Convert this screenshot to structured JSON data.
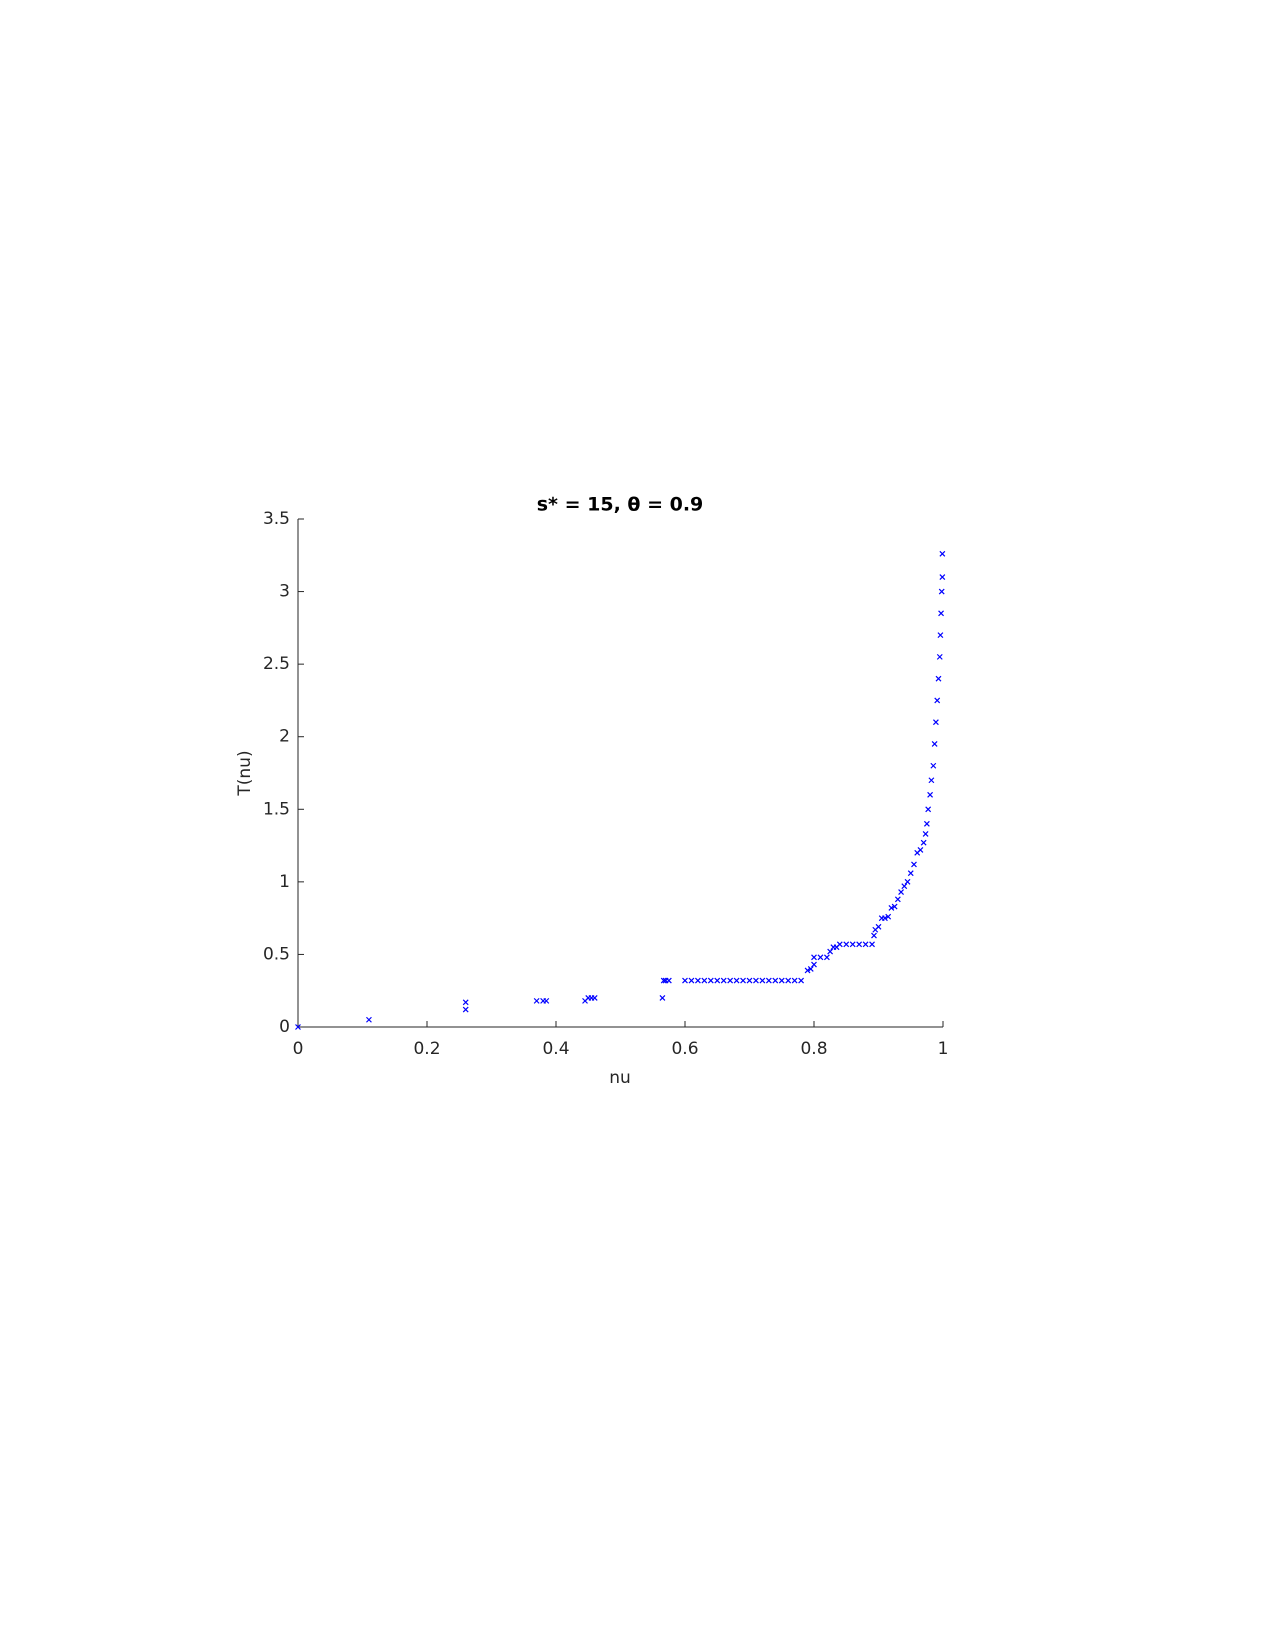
{
  "chart_data": {
    "type": "scatter",
    "title": "s* = 15, θ = 0.9",
    "xlabel": "nu",
    "ylabel": "T(nu)",
    "xlim": [
      0,
      1
    ],
    "ylim": [
      0,
      3.5
    ],
    "xticks": [
      0,
      0.2,
      0.4,
      0.6,
      0.8,
      1
    ],
    "yticks": [
      0,
      0.5,
      1,
      1.5,
      2,
      2.5,
      3,
      3.5
    ],
    "grid": false,
    "marker": "x",
    "series": [
      {
        "color": "#0000ff",
        "x": [
          0,
          0.11,
          0.26,
          0.26,
          0.37,
          0.38,
          0.385,
          0.445,
          0.45,
          0.455,
          0.46,
          0.565,
          0.567,
          0.57,
          0.575,
          0.6,
          0.61,
          0.62,
          0.63,
          0.64,
          0.65,
          0.66,
          0.67,
          0.68,
          0.69,
          0.7,
          0.71,
          0.72,
          0.73,
          0.74,
          0.75,
          0.76,
          0.77,
          0.78,
          0.79,
          0.795,
          0.8,
          0.8,
          0.81,
          0.82,
          0.825,
          0.83,
          0.835,
          0.84,
          0.85,
          0.86,
          0.87,
          0.88,
          0.89,
          0.893,
          0.895,
          0.9,
          0.905,
          0.91,
          0.915,
          0.92,
          0.925,
          0.93,
          0.935,
          0.94,
          0.945,
          0.95,
          0.955,
          0.96,
          0.965,
          0.97,
          0.973,
          0.975,
          0.977,
          0.98,
          0.982,
          0.985,
          0.987,
          0.989,
          0.991,
          0.993,
          0.995,
          0.996,
          0.997,
          0.998,
          0.999,
          0.999
        ],
        "values": [
          0,
          0.05,
          0.12,
          0.17,
          0.18,
          0.18,
          0.18,
          0.18,
          0.2,
          0.2,
          0.2,
          0.2,
          0.32,
          0.32,
          0.32,
          0.32,
          0.32,
          0.32,
          0.32,
          0.32,
          0.32,
          0.32,
          0.32,
          0.32,
          0.32,
          0.32,
          0.32,
          0.32,
          0.32,
          0.32,
          0.32,
          0.32,
          0.32,
          0.32,
          0.39,
          0.4,
          0.43,
          0.48,
          0.48,
          0.48,
          0.52,
          0.55,
          0.55,
          0.57,
          0.57,
          0.57,
          0.57,
          0.57,
          0.57,
          0.63,
          0.67,
          0.69,
          0.75,
          0.75,
          0.76,
          0.82,
          0.83,
          0.88,
          0.93,
          0.97,
          1.0,
          1.06,
          1.12,
          1.2,
          1.22,
          1.27,
          1.33,
          1.4,
          1.5,
          1.6,
          1.7,
          1.8,
          1.95,
          2.1,
          2.25,
          2.4,
          2.55,
          2.7,
          2.85,
          3.0,
          3.1,
          3.26
        ]
      }
    ]
  }
}
